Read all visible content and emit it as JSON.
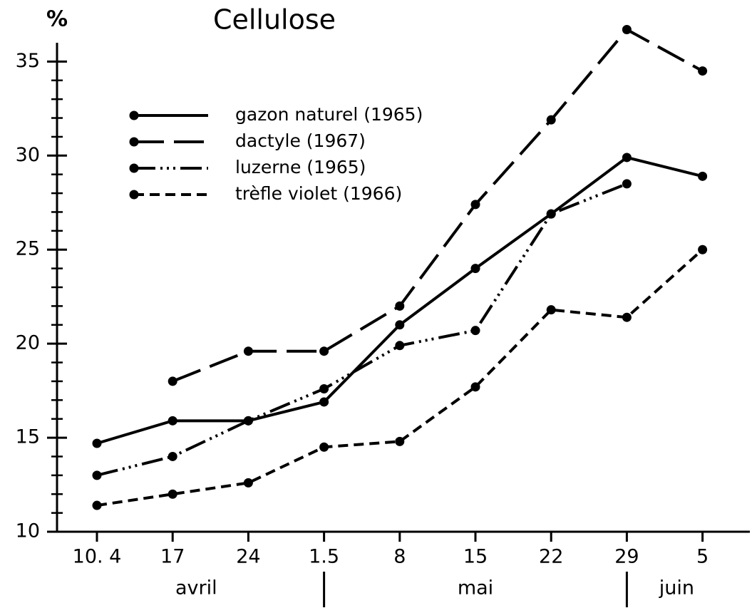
{
  "chart_data": {
    "type": "line",
    "title": "Cellulose",
    "y_label": "%",
    "categories": [
      "10. 4",
      "17",
      "24",
      "1.5",
      "8",
      "15",
      "22",
      "29",
      "5"
    ],
    "months": [
      "avril",
      "mai",
      "juin"
    ],
    "ylim": [
      10,
      36
    ],
    "yticks": [
      10,
      15,
      20,
      25,
      30,
      35
    ],
    "yminorticks": [
      11,
      12,
      13,
      14,
      16,
      17,
      18,
      19,
      21,
      22,
      23,
      24,
      26,
      27,
      28,
      29,
      31,
      32,
      33,
      34
    ],
    "grid": false,
    "legend": "upper left",
    "series": [
      {
        "name": "gazon naturel (1965)",
        "color": "#000000",
        "dash": "solid",
        "values": [
          14.7,
          15.9,
          15.9,
          16.9,
          21.0,
          24.0,
          26.9,
          29.9,
          28.9
        ]
      },
      {
        "name": "dactyle (1967)",
        "color": "#000000",
        "dash": "long-dash",
        "values": [
          null,
          18.0,
          19.6,
          19.6,
          22.0,
          27.4,
          31.9,
          36.7,
          34.5
        ]
      },
      {
        "name": "luzerne (1965)",
        "color": "#000000",
        "dash": "dash-dot-dot",
        "values": [
          13.0,
          14.0,
          15.9,
          17.6,
          19.9,
          20.7,
          26.9,
          28.5,
          null
        ]
      },
      {
        "name": "trèfle violet (1966)",
        "color": "#000000",
        "dash": "short-dash",
        "values": [
          11.4,
          12.0,
          12.6,
          14.5,
          14.8,
          17.7,
          21.8,
          21.4,
          25.0
        ]
      }
    ]
  }
}
